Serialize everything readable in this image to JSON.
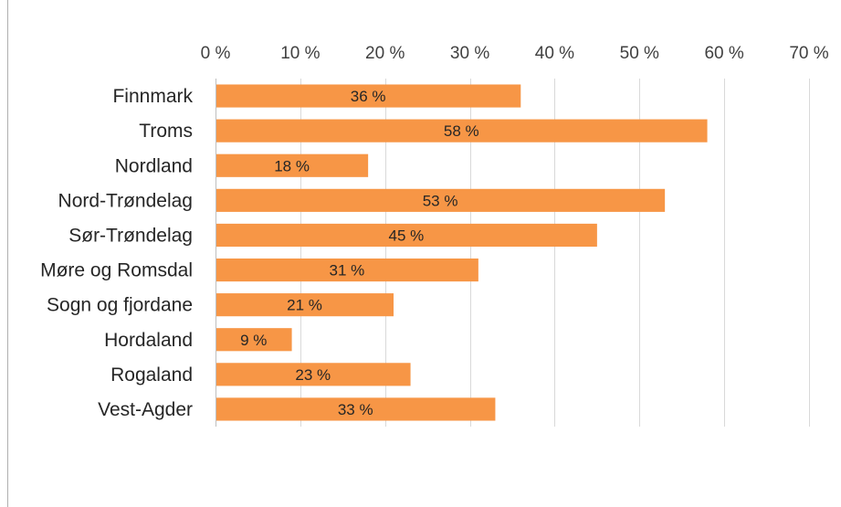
{
  "chart_data": {
    "type": "bar",
    "orientation": "horizontal",
    "title": "",
    "xlabel": "",
    "ylabel": "",
    "categories": [
      "Finnmark",
      "Troms",
      "Nordland",
      "Nord-Trøndelag",
      "Sør-Trøndelag",
      "Møre og Romsdal",
      "Sogn og fjordane",
      "Hordaland",
      "Rogaland",
      "Vest-Agder"
    ],
    "values": [
      36,
      58,
      18,
      53,
      45,
      31,
      21,
      9,
      23,
      33
    ],
    "data_labels": [
      "36 %",
      "58 %",
      "18 %",
      "53 %",
      "45 %",
      "31 %",
      "21 %",
      "9 %",
      "23 %",
      "33 %"
    ],
    "xlim": [
      0,
      70
    ],
    "x_ticks": [
      0,
      10,
      20,
      30,
      40,
      50,
      60,
      70
    ],
    "x_tick_labels": [
      "0 %",
      "10 %",
      "20 %",
      "30 %",
      "40 %",
      "50 %",
      "60 %",
      "70 %"
    ],
    "x_axis_position": "top",
    "grid": true,
    "legend": "none",
    "bar_color": "#F79646"
  }
}
